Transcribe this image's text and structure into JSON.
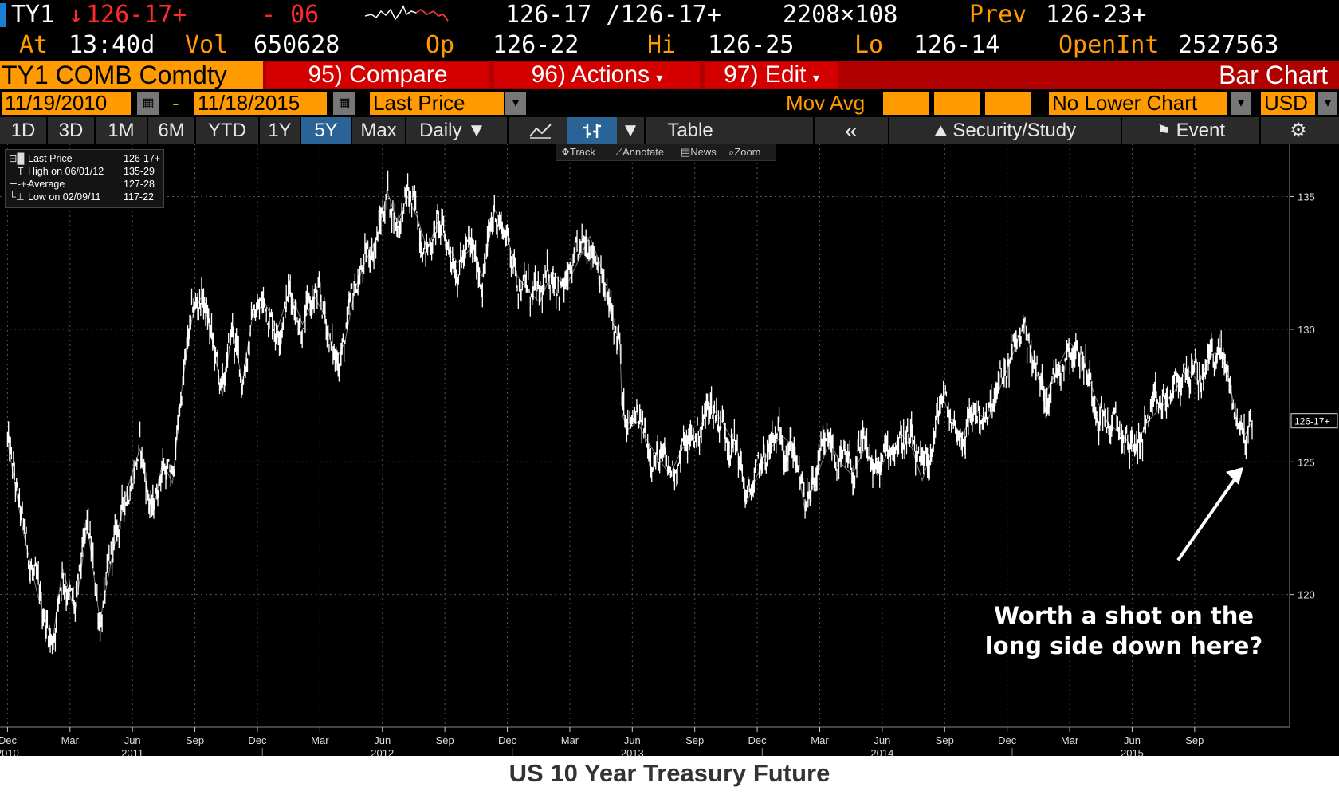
{
  "header": {
    "ticker": "TY1",
    "arrow": "↓",
    "last": "126-17+",
    "change": "- 06",
    "bid_ask": "126-17 /126-17+",
    "size": "2208×108",
    "prev_label": "Prev",
    "prev": "126-23+",
    "at_label": "At",
    "time": "13:40d",
    "vol_label": "Vol",
    "vol": "650628",
    "op_label": "Op",
    "op": "126-22",
    "hi_label": "Hi",
    "hi": "126-25",
    "lo_label": "Lo",
    "lo": "126-14",
    "oi_label": "OpenInt",
    "oi": "2527563"
  },
  "menu": {
    "security": "TY1 COMB Comdty",
    "compare": "95) Compare",
    "actions": "96) Actions",
    "edit": "97) Edit",
    "chart_type": "Bar Chart"
  },
  "controls": {
    "start_date": "11/19/2010",
    "dash": "-",
    "end_date": "11/18/2015",
    "field": "Last Price",
    "mov_avg": "Mov Avg",
    "lower": "No Lower Chart",
    "currency": "USD"
  },
  "tabs": {
    "items": [
      "1D",
      "3D",
      "1M",
      "6M",
      "YTD",
      "1Y",
      "5Y",
      "Max"
    ],
    "selected": "5Y",
    "period": "Daily ▼",
    "table": "Table",
    "collapse": "«",
    "security_study": "Security/Study",
    "event": "Event"
  },
  "tools": {
    "track": "Track",
    "annotate": "Annotate",
    "news": "News",
    "zoom": "Zoom"
  },
  "legend": {
    "rows": [
      {
        "name": "Last Price",
        "value": "126-17+"
      },
      {
        "name": "High on 06/01/12",
        "value": "135-29"
      },
      {
        "name": "Average",
        "value": "127-28"
      },
      {
        "name": "Low on 02/09/11",
        "value": "117-22"
      }
    ]
  },
  "colors": {
    "orange": "#ff9a00",
    "red": "#ff2a2a",
    "menu_red": "#d40000",
    "tab_selected": "#2a6496"
  },
  "chart_data": {
    "type": "line",
    "ylim": [
      115,
      137
    ],
    "yticks": [
      120,
      125,
      130,
      135
    ],
    "last_value_label": "126-17+",
    "x_ticks": [
      {
        "label": "Dec",
        "t": 0.0
      },
      {
        "label": "Mar",
        "t": 0.25
      },
      {
        "label": "Jun",
        "t": 0.5
      },
      {
        "label": "Sep",
        "t": 0.75
      },
      {
        "label": "Dec",
        "t": 1.0
      },
      {
        "label": "Mar",
        "t": 1.25
      },
      {
        "label": "Jun",
        "t": 1.5
      },
      {
        "label": "Sep",
        "t": 1.75
      },
      {
        "label": "Dec",
        "t": 2.0
      },
      {
        "label": "Mar",
        "t": 2.25
      },
      {
        "label": "Jun",
        "t": 2.5
      },
      {
        "label": "Sep",
        "t": 2.75
      },
      {
        "label": "Dec",
        "t": 3.0
      },
      {
        "label": "Mar",
        "t": 3.25
      },
      {
        "label": "Jun",
        "t": 3.5
      },
      {
        "label": "Sep",
        "t": 3.75
      },
      {
        "label": "Dec",
        "t": 4.0
      },
      {
        "label": "Mar",
        "t": 4.25
      },
      {
        "label": "Jun",
        "t": 4.5
      },
      {
        "label": "Sep",
        "t": 4.75
      }
    ],
    "year_labels": [
      {
        "label": "2010",
        "t": 0.0
      },
      {
        "label": "2011",
        "t": 0.5
      },
      {
        "label": "2012",
        "t": 1.5
      },
      {
        "label": "2013",
        "t": 2.5
      },
      {
        "label": "2014",
        "t": 3.5
      },
      {
        "label": "2015",
        "t": 4.5
      }
    ],
    "x_end": 4.98,
    "series": [
      {
        "points": [
          [
            0.0,
            125.8
          ],
          [
            0.06,
            122.5
          ],
          [
            0.12,
            120.0
          ],
          [
            0.18,
            118.2
          ],
          [
            0.22,
            121.0
          ],
          [
            0.27,
            119.3
          ],
          [
            0.32,
            122.6
          ],
          [
            0.37,
            119.0
          ],
          [
            0.42,
            121.5
          ],
          [
            0.48,
            124.0
          ],
          [
            0.53,
            125.5
          ],
          [
            0.58,
            123.0
          ],
          [
            0.62,
            125.0
          ],
          [
            0.66,
            124.2
          ],
          [
            0.7,
            128.0
          ],
          [
            0.74,
            130.5
          ],
          [
            0.78,
            131.3
          ],
          [
            0.82,
            129.5
          ],
          [
            0.86,
            127.5
          ],
          [
            0.9,
            130.0
          ],
          [
            0.94,
            128.0
          ],
          [
            0.98,
            130.5
          ],
          [
            1.03,
            131.0
          ],
          [
            1.08,
            130.0
          ],
          [
            1.13,
            131.5
          ],
          [
            1.18,
            130.2
          ],
          [
            1.23,
            131.2
          ],
          [
            1.27,
            130.5
          ],
          [
            1.31,
            128.8
          ],
          [
            1.35,
            129.5
          ],
          [
            1.39,
            131.5
          ],
          [
            1.43,
            132.5
          ],
          [
            1.48,
            133.5
          ],
          [
            1.52,
            135.2
          ],
          [
            1.56,
            134.0
          ],
          [
            1.6,
            135.0
          ],
          [
            1.64,
            134.2
          ],
          [
            1.68,
            133.0
          ],
          [
            1.72,
            134.0
          ],
          [
            1.76,
            133.2
          ],
          [
            1.8,
            132.5
          ],
          [
            1.85,
            133.0
          ],
          [
            1.9,
            132.0
          ],
          [
            1.95,
            134.5
          ],
          [
            2.0,
            133.5
          ],
          [
            2.04,
            132.0
          ],
          [
            2.08,
            131.5
          ],
          [
            2.13,
            131.0
          ],
          [
            2.18,
            132.2
          ],
          [
            2.23,
            131.5
          ],
          [
            2.28,
            132.5
          ],
          [
            2.33,
            133.5
          ],
          [
            2.37,
            132.5
          ],
          [
            2.4,
            131.0
          ],
          [
            2.43,
            130.0
          ],
          [
            2.45,
            129.5
          ],
          [
            2.46,
            126.8
          ],
          [
            2.48,
            126.2
          ],
          [
            2.52,
            126.5
          ],
          [
            2.56,
            125.8
          ],
          [
            2.6,
            125.2
          ],
          [
            2.65,
            124.5
          ],
          [
            2.7,
            125.5
          ],
          [
            2.76,
            126.0
          ],
          [
            2.81,
            127.2
          ],
          [
            2.86,
            126.5
          ],
          [
            2.92,
            125.5
          ],
          [
            2.96,
            123.5
          ],
          [
            3.0,
            124.5
          ],
          [
            3.05,
            125.5
          ],
          [
            3.1,
            126.0
          ],
          [
            3.15,
            125.5
          ],
          [
            3.19,
            123.2
          ],
          [
            3.24,
            124.5
          ],
          [
            3.29,
            125.8
          ],
          [
            3.33,
            125.0
          ],
          [
            3.38,
            124.5
          ],
          [
            3.43,
            125.5
          ],
          [
            3.48,
            124.5
          ],
          [
            3.53,
            125.5
          ],
          [
            3.58,
            126.0
          ],
          [
            3.62,
            125.5
          ],
          [
            3.66,
            124.3
          ],
          [
            3.7,
            125.5
          ],
          [
            3.74,
            127.5
          ],
          [
            3.78,
            126.5
          ],
          [
            3.82,
            126.0
          ],
          [
            3.87,
            127.0
          ],
          [
            3.92,
            126.5
          ],
          [
            3.96,
            127.5
          ],
          [
            4.0,
            128.5
          ],
          [
            4.04,
            129.5
          ],
          [
            4.07,
            130.3
          ],
          [
            4.11,
            128.5
          ],
          [
            4.15,
            127.5
          ],
          [
            4.2,
            128.5
          ],
          [
            4.25,
            129.5
          ],
          [
            4.3,
            129.0
          ],
          [
            4.35,
            127.5
          ],
          [
            4.4,
            126.5
          ],
          [
            4.46,
            126.0
          ],
          [
            4.51,
            125.5
          ],
          [
            4.56,
            126.5
          ],
          [
            4.61,
            127.0
          ],
          [
            4.66,
            127.5
          ],
          [
            4.72,
            128.5
          ],
          [
            4.77,
            128.0
          ],
          [
            4.81,
            129.0
          ],
          [
            4.85,
            129.2
          ],
          [
            4.89,
            128.0
          ],
          [
            4.92,
            126.5
          ],
          [
            4.95,
            126.0
          ],
          [
            4.98,
            126.55
          ]
        ]
      }
    ]
  },
  "annotation": {
    "line1": "Worth a shot on the",
    "line2": "long side down here?"
  },
  "caption": "US 10 Year Treasury Future"
}
